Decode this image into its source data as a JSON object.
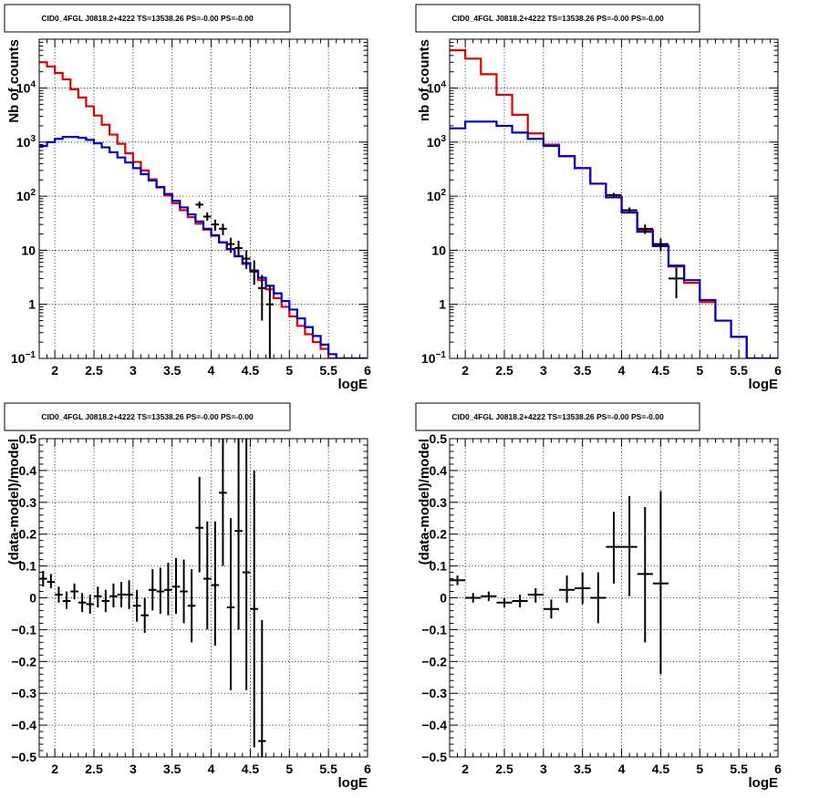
{
  "chart_data": [
    {
      "id": "p1",
      "type": "line",
      "title": "CID0_4FGL J0818.2+4222 TS=13538.26 PS=-0.00 PS=-0.00",
      "xlabel": "logE",
      "ylabel": "Nb of counts",
      "xlim": [
        1.8,
        6.0
      ],
      "ylim": [
        0.1,
        80000
      ],
      "yscale": "log",
      "grid": true,
      "x_ticks": [
        "2",
        "2.5",
        "3",
        "3.5",
        "4",
        "4.5",
        "5",
        "5.5",
        "6"
      ],
      "y_ticks": [
        "10^-1",
        "1",
        "10",
        "10^2",
        "10^3",
        "10^4"
      ],
      "series": [
        {
          "style": "step",
          "color": "#e00000",
          "edges": [
            1.8,
            1.9,
            2.0,
            2.1,
            2.2,
            2.3,
            2.4,
            2.5,
            2.6,
            2.7,
            2.8,
            2.9,
            3.0,
            3.1,
            3.2,
            3.3,
            3.4,
            3.5,
            3.6,
            3.7,
            3.8,
            3.9,
            4.0,
            4.1,
            4.2,
            4.3,
            4.4,
            4.5,
            4.6,
            4.7,
            4.8,
            4.9,
            5.0,
            5.1,
            5.2,
            5.3,
            5.4,
            5.5,
            5.6,
            5.7,
            5.8,
            5.9,
            6.0
          ],
          "values": [
            30000,
            25000,
            19000,
            14500,
            9500,
            6700,
            4600,
            3100,
            2100,
            1380,
            930,
            620,
            430,
            300,
            205,
            145,
            103,
            74,
            55,
            41,
            31,
            24,
            18.5,
            14,
            10.4,
            7.7,
            5.6,
            4.0,
            2.8,
            1.9,
            1.3,
            0.9,
            0.6,
            0.4,
            0.28,
            0.2,
            0.15,
            0.1,
            0.1,
            0.1,
            0.1,
            0.1
          ]
        },
        {
          "style": "step",
          "color": "#0000cc",
          "edges": [
            1.8,
            1.9,
            2.0,
            2.1,
            2.2,
            2.3,
            2.4,
            2.5,
            2.6,
            2.7,
            2.8,
            2.9,
            3.0,
            3.1,
            3.2,
            3.3,
            3.4,
            3.5,
            3.6,
            3.7,
            3.8,
            3.9,
            4.0,
            4.1,
            4.2,
            4.3,
            4.4,
            4.5,
            4.6,
            4.7,
            4.8,
            4.9,
            5.0,
            5.1,
            5.2,
            5.3,
            5.4,
            5.5,
            5.6,
            5.7,
            5.8,
            5.9,
            6.0
          ],
          "values": [
            850,
            1000,
            1150,
            1250,
            1250,
            1200,
            1100,
            950,
            800,
            650,
            520,
            420,
            330,
            255,
            195,
            148,
            110,
            82,
            62,
            46,
            34,
            25,
            19,
            14,
            10.5,
            7.8,
            5.8,
            4.2,
            3.1,
            2.2,
            1.6,
            1.15,
            0.8,
            0.55,
            0.38,
            0.26,
            0.18,
            0.12,
            0.1,
            0.1,
            0.1,
            0.1
          ]
        }
      ],
      "points": [
        {
          "x": 3.85,
          "xerr": 0.05,
          "y": 70,
          "ylo": 60,
          "yhi": 80
        },
        {
          "x": 3.95,
          "xerr": 0.05,
          "y": 42,
          "ylo": 35,
          "yhi": 50
        },
        {
          "x": 4.05,
          "xerr": 0.05,
          "y": 30,
          "ylo": 23,
          "yhi": 37
        },
        {
          "x": 4.15,
          "xerr": 0.05,
          "y": 25,
          "ylo": 19,
          "yhi": 31
        },
        {
          "x": 4.25,
          "xerr": 0.05,
          "y": 13,
          "ylo": 9,
          "yhi": 17
        },
        {
          "x": 4.35,
          "xerr": 0.05,
          "y": 11,
          "ylo": 7.5,
          "yhi": 15
        },
        {
          "x": 4.45,
          "xerr": 0.05,
          "y": 7,
          "ylo": 4.5,
          "yhi": 10
        },
        {
          "x": 4.55,
          "xerr": 0.05,
          "y": 4.2,
          "ylo": 2.3,
          "yhi": 6.5
        },
        {
          "x": 4.65,
          "xerr": 0.05,
          "y": 2,
          "ylo": 0.5,
          "yhi": 3.5
        },
        {
          "x": 4.75,
          "xerr": 0.05,
          "y": 1,
          "ylo": 0.1,
          "yhi": 2.2
        }
      ]
    },
    {
      "id": "p2",
      "type": "line",
      "title": "CID0_4FGL J0818.2+4222 TS=13538.26 PS=-0.00 PS=-0.00",
      "xlabel": "logE",
      "ylabel": "nb of counts",
      "xlim": [
        1.8,
        6.0
      ],
      "ylim": [
        0.1,
        80000
      ],
      "yscale": "log",
      "grid": true,
      "x_ticks": [
        "2",
        "2.5",
        "3",
        "3.5",
        "4",
        "4.5",
        "5",
        "5.5",
        "6"
      ],
      "y_ticks": [
        "10^-1",
        "1",
        "10",
        "10^2",
        "10^3",
        "10^4"
      ],
      "series": [
        {
          "style": "step",
          "color": "#e00000",
          "edges": [
            1.8,
            2.0,
            2.2,
            2.4,
            2.6,
            2.8,
            3.0,
            3.2,
            3.4,
            3.6,
            3.8,
            4.0,
            4.2,
            4.4,
            4.6,
            4.8,
            5.0,
            5.2,
            5.4,
            5.6,
            5.8,
            6.0
          ],
          "values": [
            50000,
            35000,
            18000,
            7500,
            3200,
            1450,
            900,
            550,
            330,
            170,
            95,
            50,
            24,
            12,
            5,
            2.5,
            1.1,
            0.5,
            0.25,
            0.1,
            0.1
          ]
        },
        {
          "style": "step",
          "color": "#0000cc",
          "edges": [
            1.8,
            2.0,
            2.2,
            2.4,
            2.6,
            2.8,
            3.0,
            3.2,
            3.4,
            3.6,
            3.8,
            4.0,
            4.2,
            4.4,
            4.6,
            4.8,
            5.0,
            5.2,
            5.4,
            5.6,
            5.8,
            6.0
          ],
          "values": [
            1800,
            2400,
            2400,
            2000,
            1500,
            1150,
            850,
            550,
            330,
            170,
            95,
            50,
            22,
            12,
            5.2,
            2.8,
            1.2,
            0.5,
            0.25,
            0.1,
            0.1
          ]
        }
      ],
      "points": [
        {
          "x": 3.9,
          "xerr": 0.1,
          "y": 105,
          "ylo": 95,
          "yhi": 115
        },
        {
          "x": 4.1,
          "xerr": 0.1,
          "y": 55,
          "ylo": 48,
          "yhi": 62
        },
        {
          "x": 4.3,
          "xerr": 0.1,
          "y": 25,
          "ylo": 20,
          "yhi": 30
        },
        {
          "x": 4.5,
          "xerr": 0.1,
          "y": 13,
          "ylo": 9.5,
          "yhi": 16.5
        },
        {
          "x": 4.7,
          "xerr": 0.1,
          "y": 3,
          "ylo": 1.3,
          "yhi": 4.8
        }
      ]
    },
    {
      "id": "p3",
      "type": "scatter",
      "title": "CID0_4FGL J0818.2+4222 TS=13538.26 PS=-0.00 PS=-0.00",
      "xlabel": "logE",
      "ylabel": "(data-model)/model",
      "xlim": [
        1.8,
        6.0
      ],
      "ylim": [
        -0.5,
        0.5
      ],
      "yscale": "linear",
      "grid": true,
      "x_ticks": [
        "2",
        "2.5",
        "3",
        "3.5",
        "4",
        "4.5",
        "5",
        "5.5",
        "6"
      ],
      "y_ticks": [
        "−0.5",
        "−0.4",
        "−0.3",
        "−0.2",
        "−0.1",
        "0",
        "0.1",
        "0.2",
        "0.3",
        "0.4",
        "0.5"
      ],
      "points": [
        {
          "x": 1.85,
          "xerr": 0.05,
          "y": 0.06,
          "ylo": 0.035,
          "yhi": 0.085
        },
        {
          "x": 1.95,
          "xerr": 0.05,
          "y": 0.05,
          "ylo": 0.03,
          "yhi": 0.075
        },
        {
          "x": 2.05,
          "xerr": 0.05,
          "y": 0.01,
          "ylo": -0.015,
          "yhi": 0.035
        },
        {
          "x": 2.15,
          "xerr": 0.05,
          "y": -0.01,
          "ylo": -0.035,
          "yhi": 0.02
        },
        {
          "x": 2.25,
          "xerr": 0.05,
          "y": 0.02,
          "ylo": -0.005,
          "yhi": 0.045
        },
        {
          "x": 2.35,
          "xerr": 0.05,
          "y": -0.015,
          "ylo": -0.045,
          "yhi": 0.015
        },
        {
          "x": 2.45,
          "xerr": 0.05,
          "y": -0.02,
          "ylo": -0.05,
          "yhi": 0.01
        },
        {
          "x": 2.55,
          "xerr": 0.05,
          "y": 0.005,
          "ylo": -0.03,
          "yhi": 0.035
        },
        {
          "x": 2.65,
          "xerr": 0.05,
          "y": -0.01,
          "ylo": -0.045,
          "yhi": 0.025
        },
        {
          "x": 2.75,
          "xerr": 0.05,
          "y": 0.005,
          "ylo": -0.03,
          "yhi": 0.045
        },
        {
          "x": 2.85,
          "xerr": 0.05,
          "y": 0.01,
          "ylo": -0.03,
          "yhi": 0.05
        },
        {
          "x": 2.95,
          "xerr": 0.05,
          "y": 0.01,
          "ylo": -0.035,
          "yhi": 0.055
        },
        {
          "x": 3.05,
          "xerr": 0.05,
          "y": -0.025,
          "ylo": -0.075,
          "yhi": 0.025
        },
        {
          "x": 3.15,
          "xerr": 0.05,
          "y": -0.055,
          "ylo": -0.11,
          "yhi": 0.0
        },
        {
          "x": 3.25,
          "xerr": 0.05,
          "y": 0.025,
          "ylo": -0.04,
          "yhi": 0.09
        },
        {
          "x": 3.35,
          "xerr": 0.05,
          "y": 0.02,
          "ylo": -0.05,
          "yhi": 0.095
        },
        {
          "x": 3.45,
          "xerr": 0.05,
          "y": 0.025,
          "ylo": -0.055,
          "yhi": 0.11
        },
        {
          "x": 3.55,
          "xerr": 0.05,
          "y": 0.035,
          "ylo": -0.05,
          "yhi": 0.125
        },
        {
          "x": 3.65,
          "xerr": 0.05,
          "y": 0.02,
          "ylo": -0.08,
          "yhi": 0.12
        },
        {
          "x": 3.75,
          "xerr": 0.05,
          "y": -0.025,
          "ylo": -0.14,
          "yhi": 0.09
        },
        {
          "x": 3.85,
          "xerr": 0.05,
          "y": 0.22,
          "ylo": 0.08,
          "yhi": 0.38
        },
        {
          "x": 3.95,
          "xerr": 0.05,
          "y": 0.06,
          "ylo": -0.1,
          "yhi": 0.24
        },
        {
          "x": 4.05,
          "xerr": 0.05,
          "y": 0.04,
          "ylo": -0.15,
          "yhi": 0.24
        },
        {
          "x": 4.15,
          "xerr": 0.05,
          "y": 0.33,
          "ylo": 0.1,
          "yhi": 0.5
        },
        {
          "x": 4.25,
          "xerr": 0.05,
          "y": -0.03,
          "ylo": -0.29,
          "yhi": 0.25
        },
        {
          "x": 4.35,
          "xerr": 0.05,
          "y": 0.21,
          "ylo": -0.1,
          "yhi": 0.5
        },
        {
          "x": 4.45,
          "xerr": 0.05,
          "y": 0.08,
          "ylo": -0.29,
          "yhi": 0.5
        },
        {
          "x": 4.55,
          "xerr": 0.05,
          "y": -0.035,
          "ylo": -0.47,
          "yhi": 0.4
        },
        {
          "x": 4.65,
          "xerr": 0.05,
          "y": -0.45,
          "ylo": -0.5,
          "yhi": -0.07
        }
      ]
    },
    {
      "id": "p4",
      "type": "scatter",
      "title": "CID0_4FGL J0818.2+4222 TS=13538.26 PS=-0.00 PS=-0.00",
      "xlabel": "logE",
      "ylabel": "(data-model)/model",
      "xlim": [
        1.8,
        6.0
      ],
      "ylim": [
        -0.5,
        0.5
      ],
      "yscale": "linear",
      "grid": true,
      "x_ticks": [
        "2",
        "2.5",
        "3",
        "3.5",
        "4",
        "4.5",
        "5",
        "5.5",
        "6"
      ],
      "y_ticks": [
        "−0.5",
        "−0.4",
        "−0.3",
        "−0.2",
        "−0.1",
        "0",
        "0.1",
        "0.2",
        "0.3",
        "0.4",
        "0.5"
      ],
      "points": [
        {
          "x": 1.9,
          "xerr": 0.1,
          "y": 0.055,
          "ylo": 0.04,
          "yhi": 0.07
        },
        {
          "x": 2.1,
          "xerr": 0.1,
          "y": 0.0,
          "ylo": -0.015,
          "yhi": 0.015
        },
        {
          "x": 2.3,
          "xerr": 0.1,
          "y": 0.005,
          "ylo": -0.01,
          "yhi": 0.02
        },
        {
          "x": 2.5,
          "xerr": 0.1,
          "y": -0.015,
          "ylo": -0.03,
          "yhi": 0.0
        },
        {
          "x": 2.7,
          "xerr": 0.1,
          "y": -0.01,
          "ylo": -0.03,
          "yhi": 0.01
        },
        {
          "x": 2.9,
          "xerr": 0.1,
          "y": 0.01,
          "ylo": -0.015,
          "yhi": 0.03
        },
        {
          "x": 3.1,
          "xerr": 0.1,
          "y": -0.035,
          "ylo": -0.065,
          "yhi": -0.005
        },
        {
          "x": 3.3,
          "xerr": 0.1,
          "y": 0.025,
          "ylo": -0.015,
          "yhi": 0.07
        },
        {
          "x": 3.5,
          "xerr": 0.1,
          "y": 0.03,
          "ylo": -0.02,
          "yhi": 0.08
        },
        {
          "x": 3.7,
          "xerr": 0.1,
          "y": 0.0,
          "ylo": -0.08,
          "yhi": 0.08
        },
        {
          "x": 3.9,
          "xerr": 0.1,
          "y": 0.16,
          "ylo": 0.045,
          "yhi": 0.27
        },
        {
          "x": 4.1,
          "xerr": 0.1,
          "y": 0.16,
          "ylo": 0.005,
          "yhi": 0.32
        },
        {
          "x": 4.3,
          "xerr": 0.1,
          "y": 0.075,
          "ylo": -0.14,
          "yhi": 0.285
        },
        {
          "x": 4.5,
          "xerr": 0.1,
          "y": 0.045,
          "ylo": -0.24,
          "yhi": 0.335
        }
      ]
    }
  ]
}
